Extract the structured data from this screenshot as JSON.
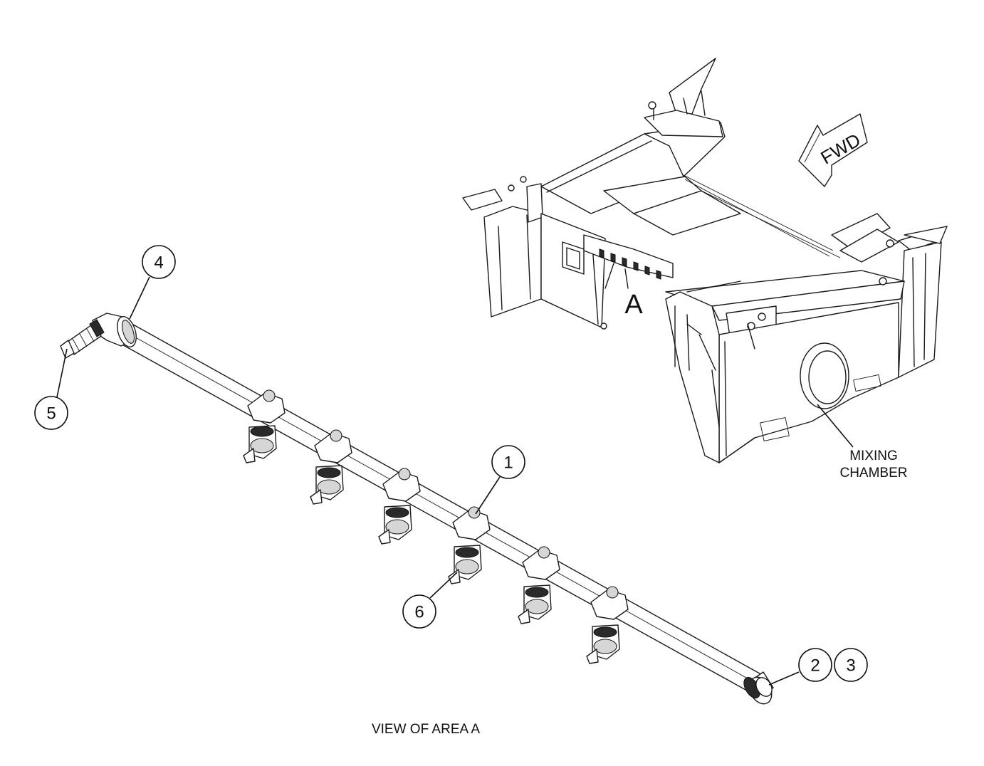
{
  "callouts": [
    {
      "id": "callout-4",
      "label": "4"
    },
    {
      "id": "callout-5",
      "label": "5"
    },
    {
      "id": "callout-1",
      "label": "1"
    },
    {
      "id": "callout-6",
      "label": "6"
    },
    {
      "id": "callout-2",
      "label": "2"
    },
    {
      "id": "callout-3",
      "label": "3"
    }
  ],
  "labels": {
    "area_marker": "A",
    "fwd": "FWD",
    "mixing_line1": "MIXING",
    "mixing_line2": "CHAMBER",
    "view_caption": "VIEW OF AREA A"
  }
}
